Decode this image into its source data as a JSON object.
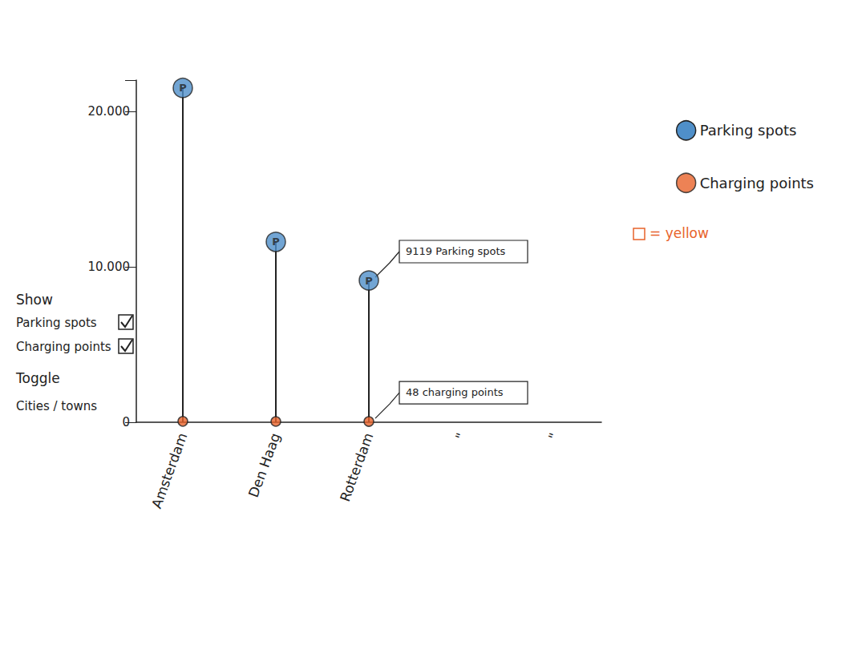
{
  "chart_data": {
    "type": "lollipop",
    "categories": [
      "Amsterdam",
      "Den Haag",
      "Rotterdam",
      "\"",
      "\""
    ],
    "series": [
      {
        "name": "Parking spots",
        "color": "#4f8fc9",
        "marker": "circle",
        "icon_text": "P",
        "values": [
          21500,
          11600,
          9119,
          null,
          null
        ]
      },
      {
        "name": "Charging points",
        "color": "#e8632b",
        "marker": "circle",
        "values": [
          60,
          50,
          48,
          null,
          null
        ]
      }
    ],
    "ylim": [
      0,
      22000
    ],
    "yticks": [
      0,
      {
        "value": 10000,
        "label": "10.000"
      },
      {
        "value": 20000,
        "label": "20.000"
      }
    ],
    "grid": false,
    "legend": "top-right",
    "annotations": [
      {
        "text": "9119 Parking spots",
        "category": "Rotterdam",
        "series": "Parking spots"
      },
      {
        "text": "48 charging points",
        "category": "Rotterdam",
        "series": "Charging points"
      }
    ],
    "color_note": {
      "text": "= yellow",
      "series": "Charging points"
    },
    "controls": {
      "title": "Show",
      "checkboxes": [
        {
          "label": "Parking spots",
          "checked": true
        },
        {
          "label": "Charging points",
          "checked": true
        }
      ],
      "toggle": {
        "title": "Toggle",
        "label": "Cities / towns"
      }
    }
  }
}
